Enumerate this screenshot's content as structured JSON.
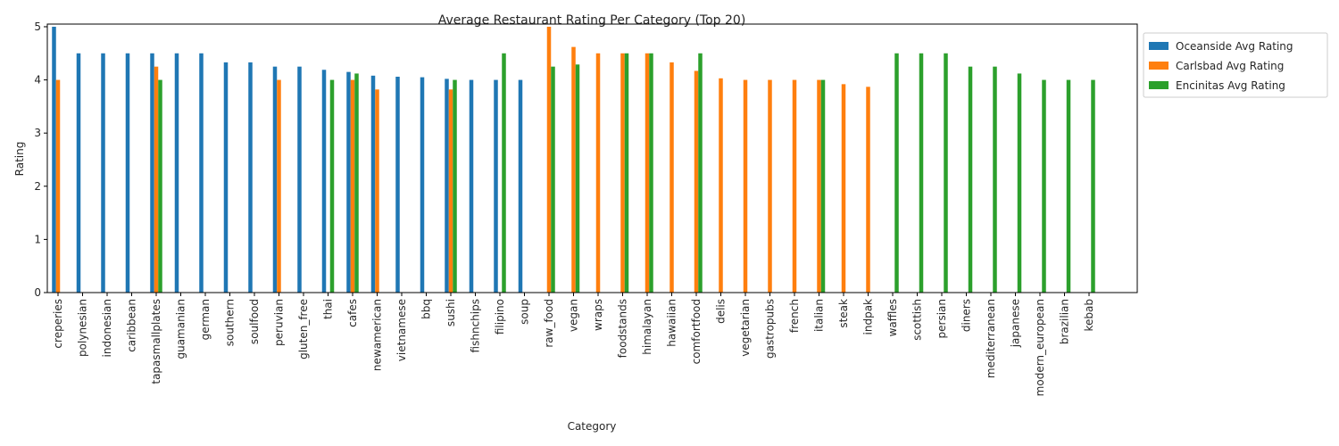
{
  "chart_data": {
    "type": "bar",
    "title": "Average Restaurant Rating Per Category (Top 20)",
    "xlabel": "Category",
    "ylabel": "Rating",
    "ylim": [
      0,
      5.05
    ],
    "yticks": [
      0,
      1,
      2,
      3,
      4,
      5
    ],
    "grid": false,
    "legend_position": "outside-top-right",
    "categories": [
      "creperies",
      "polynesian",
      "indonesian",
      "caribbean",
      "tapasmallplates",
      "guamanian",
      "german",
      "southern",
      "soulfood",
      "peruvian",
      "gluten_free",
      "thai",
      "cafes",
      "newamerican",
      "vietnamese",
      "bbq",
      "sushi",
      "fishnchips",
      "filipino",
      "soup",
      "raw_food",
      "vegan",
      "wraps",
      "foodstands",
      "himalayan",
      "hawaiian",
      "comfortfood",
      "delis",
      "vegetarian",
      "gastropubs",
      "french",
      "italian",
      "steak",
      "indpak",
      "waffles",
      "scottish",
      "persian",
      "diners",
      "mediterranean",
      "japanese",
      "modern_european",
      "brazilian",
      "kebab"
    ],
    "series": [
      {
        "name": "Oceanside Avg Rating",
        "color": "#1f77b4",
        "values": [
          5.0,
          4.5,
          4.5,
          4.5,
          4.5,
          4.5,
          4.5,
          4.33,
          4.33,
          4.25,
          4.25,
          4.19,
          4.15,
          4.08,
          4.06,
          4.05,
          4.02,
          4.0,
          4.0,
          4.0,
          null,
          null,
          null,
          null,
          null,
          null,
          null,
          null,
          null,
          null,
          null,
          null,
          null,
          null,
          null,
          null,
          null,
          null,
          null,
          null,
          null,
          null,
          null
        ]
      },
      {
        "name": "Carlsbad Avg Rating",
        "color": "#ff7f0e",
        "values": [
          4.0,
          null,
          null,
          null,
          4.25,
          null,
          null,
          null,
          null,
          4.0,
          null,
          null,
          4.0,
          3.82,
          null,
          null,
          3.82,
          null,
          null,
          null,
          5.0,
          4.62,
          4.5,
          4.5,
          4.5,
          4.33,
          4.17,
          4.03,
          4.0,
          4.0,
          4.0,
          4.0,
          3.92,
          3.87,
          null,
          null,
          null,
          null,
          null,
          null,
          null,
          null,
          null
        ]
      },
      {
        "name": "Encinitas Avg Rating",
        "color": "#2ca02c",
        "values": [
          null,
          null,
          null,
          null,
          4.0,
          null,
          null,
          null,
          null,
          null,
          null,
          4.0,
          4.12,
          null,
          null,
          null,
          4.0,
          null,
          4.5,
          null,
          4.25,
          4.29,
          null,
          4.5,
          4.5,
          null,
          4.5,
          null,
          null,
          null,
          null,
          4.0,
          null,
          null,
          4.5,
          4.5,
          4.5,
          4.25,
          4.25,
          4.12,
          4.0,
          4.0,
          4.0
        ]
      }
    ]
  }
}
